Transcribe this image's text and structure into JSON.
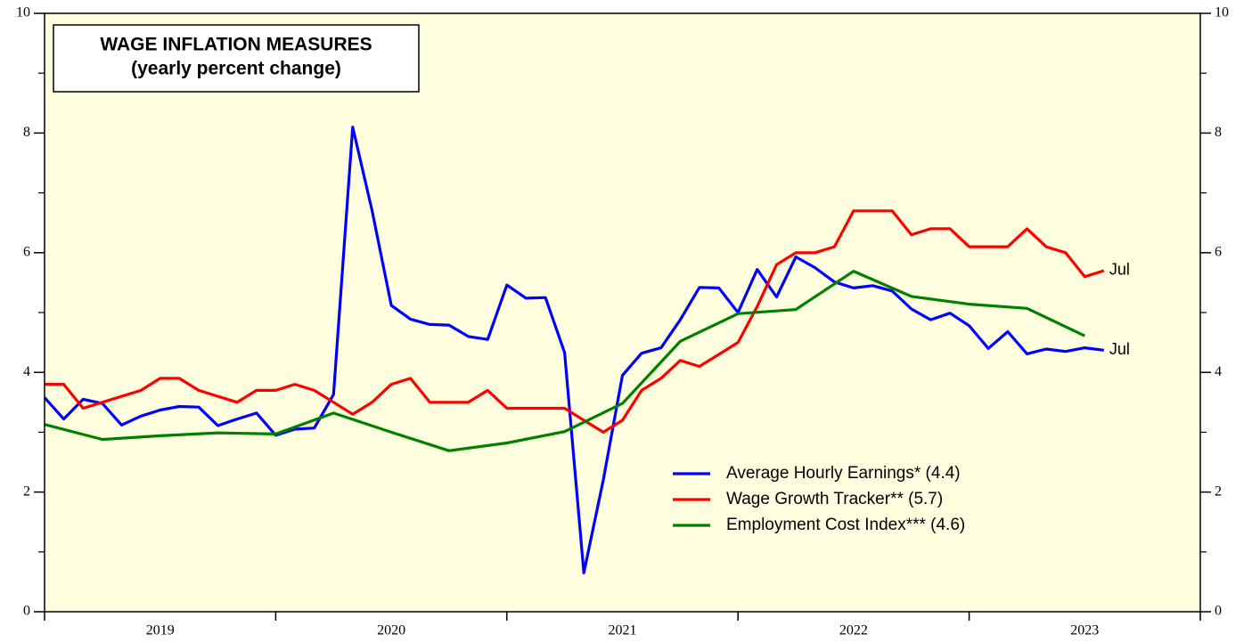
{
  "chart_data": {
    "type": "line",
    "title": "WAGE INFLATION MEASURES",
    "subtitle": "(yearly percent change)",
    "x": [
      2019,
      2019.083,
      2019.167,
      2019.25,
      2019.333,
      2019.417,
      2019.5,
      2019.583,
      2019.667,
      2019.75,
      2019.833,
      2019.917,
      2020,
      2020.083,
      2020.167,
      2020.25,
      2020.333,
      2020.417,
      2020.5,
      2020.583,
      2020.667,
      2020.75,
      2020.833,
      2020.917,
      2021,
      2021.083,
      2021.167,
      2021.25,
      2021.333,
      2021.417,
      2021.5,
      2021.583,
      2021.667,
      2021.75,
      2021.833,
      2021.917,
      2022,
      2022.083,
      2022.167,
      2022.25,
      2022.333,
      2022.417,
      2022.5,
      2022.583,
      2022.667,
      2022.75,
      2022.833,
      2022.917,
      2023,
      2023.083,
      2023.167,
      2023.25,
      2023.333,
      2023.417,
      2023.5,
      2023.583
    ],
    "series": [
      {
        "name": "Average Hourly Earnings* (4.4)",
        "color": "#0000ff",
        "values": [
          3.58,
          3.22,
          3.55,
          3.48,
          3.12,
          3.27,
          3.37,
          3.43,
          3.42,
          3.11,
          3.22,
          3.32,
          2.95,
          3.05,
          3.07,
          3.63,
          8.1,
          6.7,
          5.12,
          4.89,
          4.8,
          4.79,
          4.6,
          4.55,
          5.46,
          5.24,
          5.25,
          4.33,
          0.65,
          2.2,
          3.95,
          4.32,
          4.41,
          4.88,
          5.42,
          5.41,
          5.0,
          5.72,
          5.26,
          5.93,
          5.75,
          5.51,
          5.41,
          5.45,
          5.36,
          5.06,
          4.88,
          4.99,
          4.78,
          4.4,
          4.68,
          4.31,
          4.39,
          4.35,
          4.41,
          4.37
        ]
      },
      {
        "name": "Wage Growth Tracker** (5.7)",
        "color": "#ff0000",
        "values": [
          3.8,
          3.8,
          3.4,
          3.5,
          3.6,
          3.7,
          3.9,
          3.9,
          3.7,
          3.6,
          3.5,
          3.7,
          3.7,
          3.8,
          3.7,
          3.5,
          3.3,
          3.5,
          3.8,
          3.9,
          3.5,
          3.5,
          3.5,
          3.7,
          3.4,
          3.4,
          3.4,
          3.4,
          3.2,
          3.0,
          3.2,
          3.7,
          3.9,
          4.2,
          4.1,
          4.3,
          4.5,
          5.1,
          5.8,
          6.0,
          6.0,
          6.1,
          6.7,
          6.7,
          6.7,
          6.3,
          6.4,
          6.4,
          6.1,
          6.1,
          6.1,
          6.4,
          6.1,
          6.0,
          5.6,
          5.7
        ]
      },
      {
        "name": "Employment Cost Index*** (4.6)",
        "color": "#008000",
        "x": [
          2019,
          2019.25,
          2019.5,
          2019.75,
          2020,
          2020.25,
          2020.5,
          2020.75,
          2021,
          2021.25,
          2021.5,
          2021.75,
          2022,
          2022.25,
          2022.5,
          2022.75,
          2023,
          2023.25,
          2023.5
        ],
        "values": [
          3.13,
          2.88,
          2.94,
          2.99,
          2.97,
          3.32,
          3.0,
          2.69,
          2.82,
          3.01,
          3.48,
          4.52,
          4.98,
          5.05,
          5.69,
          5.27,
          5.14,
          5.07,
          4.61
        ]
      }
    ],
    "annotations": [
      {
        "text": "Jul",
        "series": 1
      },
      {
        "text": "Jul",
        "series": 0
      }
    ],
    "xlim": [
      2019,
      2024
    ],
    "xticks": [
      2019,
      2020,
      2021,
      2022,
      2023,
      2024
    ],
    "ylim": [
      0,
      10
    ],
    "yticks": [
      0,
      2,
      4,
      6,
      8,
      10
    ],
    "yminorticks": [
      1,
      3,
      5,
      7,
      9
    ],
    "y2lim": [
      0,
      10
    ],
    "y2ticks": [
      0,
      2,
      4,
      6,
      8,
      10
    ],
    "background": "#ffffe0"
  }
}
